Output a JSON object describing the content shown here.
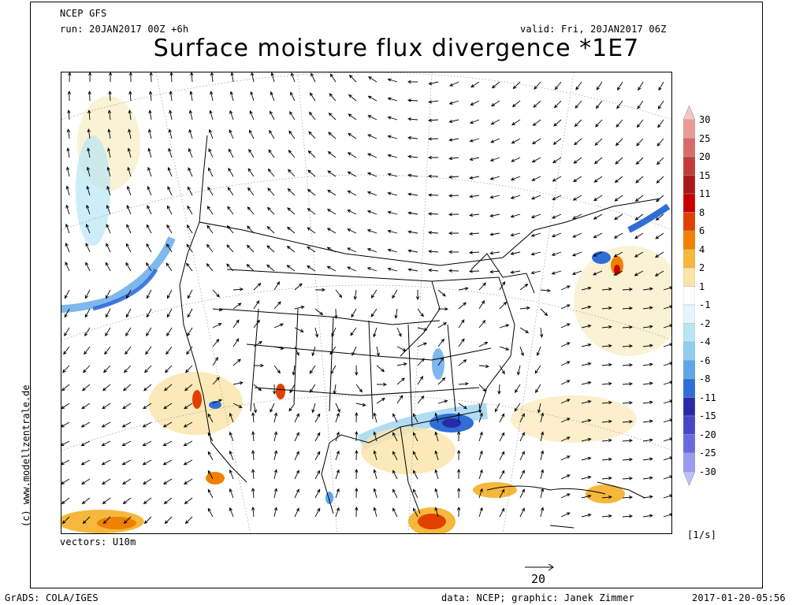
{
  "header": {
    "model": "NCEP GFS",
    "run": "run: 20JAN2017 00Z +6h",
    "valid": "valid: Fri, 20JAN2017 06Z",
    "title": "Surface moisture flux divergence *1E7"
  },
  "map": {
    "vectors_label": "vectors: U10m",
    "reference_vector_value": "20",
    "units": "[1/s]",
    "watermark": "(c) www.modellzentrale.de"
  },
  "colorbar": {
    "labels": [
      "30",
      "25",
      "20",
      "15",
      "11",
      "8",
      "6",
      "4",
      "2",
      "1",
      "-1",
      "-2",
      "-4",
      "-6",
      "-8",
      "-11",
      "-15",
      "-20",
      "-25",
      "-30"
    ],
    "colors": [
      "#f6c6c6",
      "#ea9a9a",
      "#d86b6b",
      "#c43b3b",
      "#a81a1a",
      "#c80000",
      "#e04000",
      "#f08000",
      "#f5b83c",
      "#fbe4a8",
      "#ffffff",
      "#e6f5fb",
      "#b8e6f5",
      "#8fcdf0",
      "#5ea6e8",
      "#2f6ed6",
      "#2a2aa8",
      "#4646c8",
      "#6a6ae0",
      "#9a9af0",
      "#c0c0fa"
    ]
  },
  "footer": {
    "left": "GrADS: COLA/IGES",
    "center": "data: NCEP; graphic: Janek Zimmer",
    "right": "2017-01-20-05:56"
  }
}
